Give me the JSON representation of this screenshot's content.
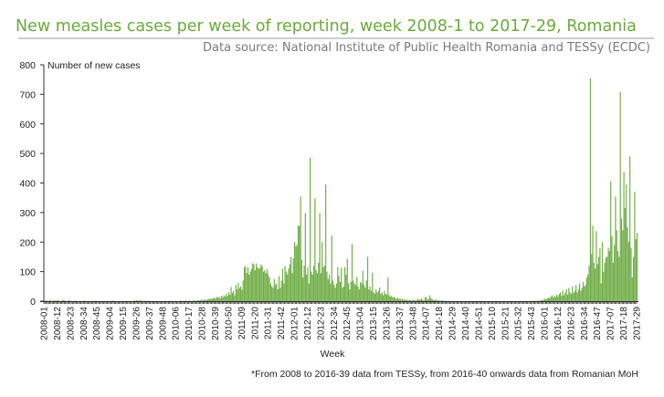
{
  "chart_data": {
    "type": "bar",
    "title": "New measles cases per week of reporting, week 2008-1 to 2017-29, Romania",
    "subtitle": "Data source: National Institute of Public Health Romania and TESSy (ECDC)",
    "ylabel": "Number of new cases",
    "xlabel": "Week",
    "footnote": "*From 2008 to 2016-39 data from TESSy,  from 2016-40 onwards data from Romanian MoH",
    "ylim": [
      0,
      800
    ],
    "yticks": [
      0,
      100,
      200,
      300,
      400,
      500,
      600,
      700,
      800
    ],
    "grid": false,
    "bar_color": "#70ad47",
    "title_color": "#6aaa3a",
    "x_tick_labels": [
      "2008-01",
      "2008-12",
      "2008-23",
      "2008-34",
      "2008-45",
      "2009-04",
      "2009-15",
      "2009-26",
      "2009-37",
      "2009-48",
      "2010-06",
      "2010-17",
      "2010-28",
      "2010-39",
      "2010-50",
      "2011-09",
      "2011-20",
      "2011-31",
      "2011-42",
      "2012-01",
      "2012-12",
      "2012-23",
      "2012-34",
      "2012-45",
      "2013-04",
      "2013-15",
      "2013-26",
      "2013-37",
      "2013-48",
      "2014-07",
      "2014-18",
      "2014-29",
      "2014-40",
      "2014-51",
      "2015-10",
      "2015-21",
      "2015-32",
      "2015-43",
      "2016-01",
      "2016-12",
      "2016-23",
      "2016-34",
      "2016-47",
      "2017-07",
      "2017-18",
      "2017-29"
    ],
    "x_tick_every_weeks": 11,
    "values": [
      2,
      1,
      3,
      0,
      2,
      4,
      1,
      0,
      3,
      2,
      1,
      5,
      2,
      0,
      1,
      3,
      4,
      2,
      1,
      0,
      2,
      3,
      1,
      0,
      0,
      1,
      2,
      0,
      1,
      0,
      0,
      1,
      0,
      2,
      1,
      0,
      0,
      1,
      0,
      0,
      1,
      0,
      2,
      0,
      1,
      0,
      0,
      0,
      1,
      0,
      0,
      1,
      0,
      0,
      1,
      0,
      0,
      2,
      0,
      1,
      0,
      0,
      1,
      0,
      0,
      0,
      1,
      0,
      0,
      0,
      0,
      1,
      0,
      0,
      0,
      2,
      1,
      3,
      2,
      1,
      4,
      2,
      1,
      0,
      1,
      0,
      2,
      0,
      1,
      0,
      0,
      1,
      0,
      0,
      1,
      0,
      0,
      0,
      1,
      0,
      0,
      0,
      1,
      0,
      0,
      2,
      0,
      1,
      0,
      0,
      1,
      0,
      0,
      1,
      2,
      0,
      1,
      0,
      3,
      1,
      0,
      2,
      1,
      0,
      1,
      3,
      2,
      1,
      4,
      2,
      3,
      5,
      2,
      4,
      6,
      3,
      5,
      8,
      6,
      9,
      7,
      10,
      12,
      8,
      14,
      11,
      15,
      9,
      18,
      13,
      20,
      16,
      25,
      18,
      30,
      22,
      48,
      28,
      35,
      20,
      55,
      40,
      62,
      45,
      50,
      38,
      70,
      115,
      118,
      95,
      115,
      90,
      100,
      110,
      128,
      125,
      105,
      128,
      115,
      110,
      112,
      125,
      118,
      100,
      105,
      95,
      108,
      90,
      80,
      60,
      50,
      45,
      75,
      55,
      60,
      40,
      85,
      45,
      70,
      110,
      60,
      118,
      100,
      90,
      110,
      125,
      150,
      95,
      145,
      200,
      185,
      190,
      255,
      255,
      354,
      140,
      80,
      120,
      298,
      90,
      115,
      60,
      486,
      100,
      90,
      120,
      348,
      105,
      95,
      130,
      298,
      95,
      200,
      115,
      120,
      395,
      100,
      75,
      90,
      60,
      222,
      70,
      55,
      45,
      60,
      115,
      85,
      65,
      113,
      45,
      50,
      115,
      90,
      144,
      60,
      40,
      65,
      193,
      70,
      60,
      55,
      82,
      50,
      40,
      65,
      60,
      103,
      55,
      45,
      70,
      150,
      40,
      50,
      35,
      96,
      30,
      25,
      40,
      30,
      35,
      46,
      25,
      30,
      20,
      35,
      25,
      22,
      80,
      20,
      15,
      18,
      12,
      15,
      10,
      8,
      12,
      6,
      10,
      5,
      8,
      4,
      6,
      3,
      5,
      2,
      4,
      3,
      2,
      5,
      3,
      2,
      4,
      8,
      3,
      6,
      10,
      4,
      3,
      12,
      15,
      5,
      8,
      20,
      10,
      6,
      4,
      3,
      5,
      2,
      3,
      2,
      1,
      3,
      1,
      0,
      2,
      1,
      0,
      1,
      0,
      0,
      1,
      0,
      0,
      1,
      0,
      0,
      0,
      1,
      0,
      0,
      0,
      1,
      0,
      0,
      0,
      1,
      0,
      0,
      0,
      1,
      0,
      0,
      0,
      0,
      0,
      1,
      0,
      0,
      0,
      0,
      1,
      0,
      0,
      0,
      0,
      0,
      1,
      0,
      0,
      0,
      0,
      0,
      1,
      0,
      0,
      0,
      0,
      0,
      1,
      0,
      0,
      0,
      0,
      1,
      0,
      0,
      0,
      1,
      0,
      0,
      0,
      1,
      0,
      0,
      1,
      0,
      1,
      0,
      2,
      1,
      0,
      3,
      1,
      2,
      4,
      3,
      5,
      8,
      6,
      10,
      12,
      9,
      15,
      20,
      12,
      18,
      14,
      22,
      16,
      25,
      30,
      18,
      35,
      20,
      28,
      40,
      22,
      45,
      30,
      25,
      50,
      28,
      35,
      55,
      30,
      40,
      60,
      35,
      45,
      65,
      50,
      55,
      80,
      90,
      120,
      754,
      160,
      255,
      130,
      110,
      237,
      125,
      150,
      180,
      60,
      200,
      100,
      130,
      148,
      150,
      180,
      170,
      406,
      220,
      130,
      190,
      354,
      240,
      170,
      150,
      708,
      280,
      240,
      437,
      315,
      395,
      250,
      200,
      490,
      180,
      80,
      150,
      370,
      210,
      231
    ]
  }
}
